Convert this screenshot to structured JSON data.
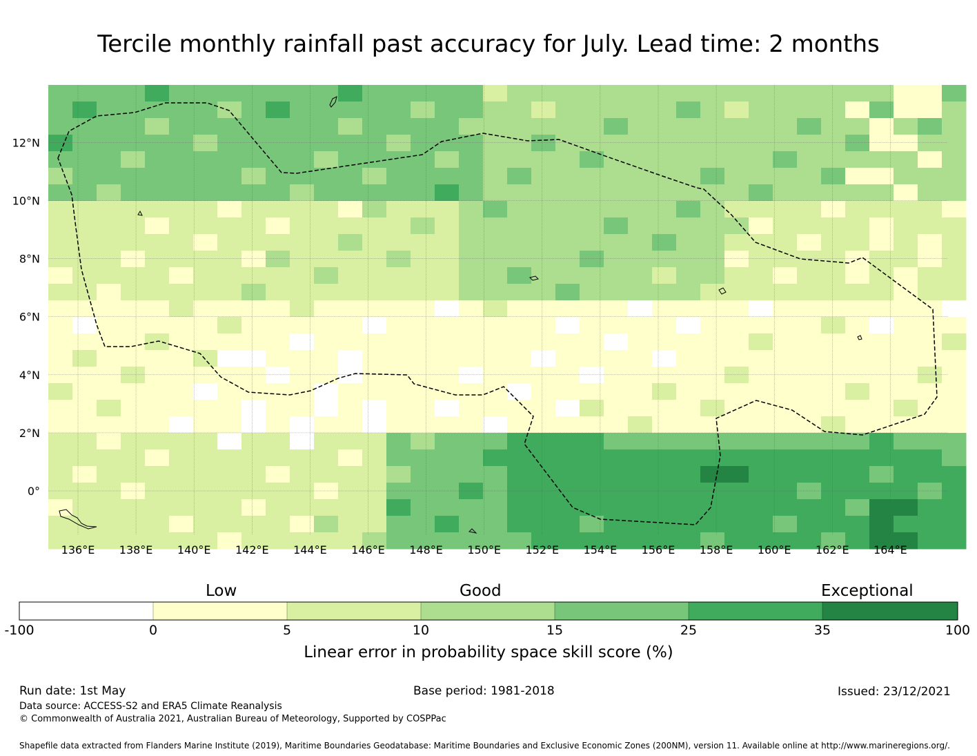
{
  "title": "Tercile monthly rainfall past accuracy for July. Lead time: 2 months",
  "map": {
    "lon_labels": [
      "136°E",
      "138°E",
      "140°E",
      "142°E",
      "144°E",
      "146°E",
      "148°E",
      "150°E",
      "152°E",
      "154°E",
      "156°E",
      "158°E",
      "160°E",
      "162°E",
      "164°E"
    ],
    "lat_labels": [
      "12°N",
      "10°N",
      "8°N",
      "6°N",
      "4°N",
      "2°N",
      "0°"
    ],
    "boundary_style": "dashed",
    "palette": {
      "-100_0": "#ffffff",
      "0_5": "#ffffcc",
      "5_10": "#d9f0a3",
      "10_15": "#addd8e",
      "15_25": "#78c679",
      "25_35": "#41ab5d",
      "35_100": "#238443"
    }
  },
  "colorbar": {
    "categories": [
      "Low",
      "Good",
      "Exceptional"
    ],
    "ticks": [
      "-100",
      "0",
      "5",
      "10",
      "15",
      "25",
      "35",
      "100"
    ],
    "colors": [
      "#ffffff",
      "#ffffcc",
      "#d9f0a3",
      "#addd8e",
      "#78c679",
      "#41ab5d",
      "#238443"
    ],
    "label": "Linear error in probability space skill score (%)"
  },
  "footer": {
    "run_date": "Run date: 1st May",
    "base_period": "Base period: 1981-2018",
    "issued": "Issued: 23/12/2021",
    "data_source": "Data source: ACCESS-S2 and ERA5 Climate Reanalysis",
    "copyright": "© Commonwealth of Australia 2021, Australian Bureau of Meteorology, Supported by COSPPac",
    "shapefile": "Shapefile data extracted from Flanders Marine Institute (2019), Maritime Boundaries Geodatabase: Maritime Boundaries and Exclusive Economic Zones (200NM), version 11. Available online at http://www.marineregions.org/."
  }
}
